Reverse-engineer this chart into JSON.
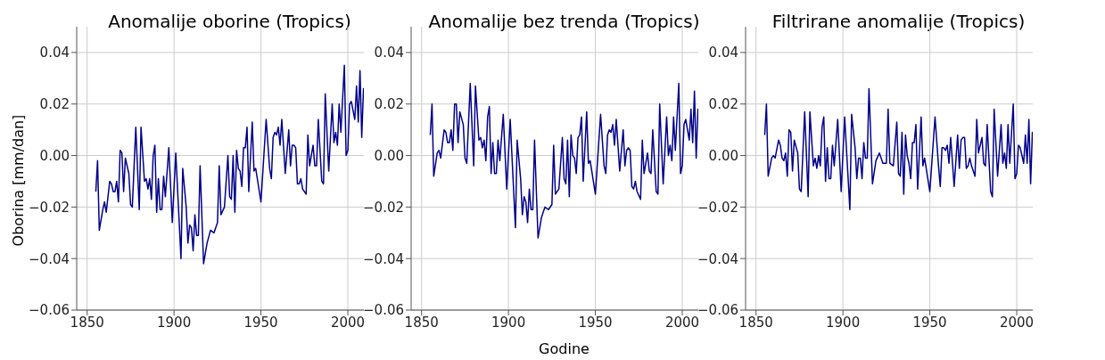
{
  "chart_data": [
    {
      "type": "line",
      "title": "Anomalije oborine (Tropics)",
      "ylabel": "Oborina [mm/dan]",
      "xlim": [
        1844,
        2020
      ],
      "xticks": [
        1850,
        1900,
        1950,
        2000
      ],
      "ylim": [
        -0.06,
        0.05
      ],
      "yticks": [
        {
          "value": -0.06,
          "label": "−0.06"
        },
        {
          "value": -0.04,
          "label": "−0.04"
        },
        {
          "value": -0.02,
          "label": "−0.02"
        },
        {
          "value": 0,
          "label": "0.00"
        },
        {
          "value": 0.02,
          "label": "0.02"
        },
        {
          "value": 0.04,
          "label": "0.04"
        }
      ],
      "grid": true,
      "line_style": "solid",
      "marker": "none",
      "series": [
        {
          "color": "#00008b",
          "x": [
            1855,
            1856,
            1857,
            1859,
            1860,
            1861,
            1863,
            1864,
            1865,
            1866,
            1867,
            1868,
            1869,
            1870,
            1871,
            1872,
            1874,
            1875,
            1876,
            1878,
            1880,
            1881,
            1883,
            1884,
            1885,
            1886,
            1887,
            1888,
            1889,
            1890,
            1891,
            1892,
            1893,
            1894,
            1895,
            1897,
            1899,
            1901,
            1904,
            1905,
            1907,
            1908,
            1909,
            1910,
            1911,
            1912,
            1913,
            1914,
            1915,
            1917,
            1919,
            1921,
            1923,
            1925,
            1926,
            1927,
            1929,
            1931,
            1932,
            1933,
            1934,
            1935,
            1936,
            1937,
            1938,
            1939,
            1940,
            1941,
            1942,
            1943,
            1945,
            1946,
            1947,
            1950,
            1953,
            1955,
            1956,
            1957,
            1958,
            1959,
            1960,
            1961,
            1962,
            1964,
            1966,
            1967,
            1968,
            1969,
            1970,
            1971,
            1972,
            1973,
            1974,
            1976,
            1977,
            1978,
            1980,
            1981,
            1982,
            1983,
            1985,
            1986,
            1987,
            1989,
            1991,
            1992,
            1993,
            1994,
            1995,
            1996,
            1998,
            1999,
            2000,
            2001,
            2002,
            2004,
            2005,
            2006,
            2007,
            2008,
            2009,
            2010
          ],
          "values": [
            -0.014,
            -0.002,
            -0.029,
            -0.021,
            -0.018,
            -0.022,
            -0.01,
            -0.011,
            -0.014,
            -0.014,
            -0.01,
            -0.018,
            0.002,
            0.001,
            -0.014,
            -0.001,
            -0.007,
            -0.019,
            -0.02,
            0.011,
            -0.021,
            0.011,
            -0.01,
            -0.009,
            -0.013,
            -0.009,
            -0.017,
            0.0,
            0.004,
            -0.022,
            -0.009,
            -0.021,
            -0.021,
            -0.008,
            -0.016,
            0.003,
            -0.026,
            0.001,
            -0.04,
            -0.005,
            -0.02,
            -0.034,
            -0.027,
            -0.028,
            -0.037,
            -0.023,
            -0.031,
            -0.031,
            -0.004,
            -0.042,
            -0.034,
            -0.029,
            -0.03,
            -0.026,
            -0.004,
            -0.023,
            -0.02,
            0.0,
            -0.016,
            -0.017,
            0.0,
            -0.022,
            0.002,
            -0.005,
            -0.006,
            -0.012,
            0.003,
            0.003,
            0.011,
            -0.014,
            0.013,
            -0.006,
            -0.005,
            -0.018,
            0.014,
            -0.005,
            -0.009,
            0.007,
            0.009,
            0.008,
            0.011,
            0.004,
            0.014,
            -0.007,
            0.01,
            -0.004,
            0.004,
            0.004,
            0.003,
            -0.011,
            -0.011,
            -0.009,
            -0.013,
            -0.015,
            0.008,
            -0.004,
            0.004,
            -0.004,
            -0.004,
            0.014,
            -0.01,
            -0.011,
            0.024,
            -0.006,
            0.02,
            0.005,
            0.009,
            0.004,
            0.02,
            0.009,
            0.035,
            0.0,
            0.002,
            0.02,
            0.021,
            0.014,
            0.027,
            0.013,
            0.033,
            0.007,
            0.026,
            0.026
          ]
        }
      ]
    },
    {
      "type": "line",
      "title": "Anomalije bez trenda (Tropics)",
      "xlabel": "Godine",
      "xlim": [
        1844,
        2020
      ],
      "xticks": [
        1850,
        1900,
        1950,
        2000
      ],
      "ylim": [
        -0.06,
        0.05
      ],
      "yticks": [
        {
          "value": -0.06,
          "label": "−0.06"
        },
        {
          "value": -0.04,
          "label": "−0.04"
        },
        {
          "value": -0.02,
          "label": "−0.02"
        },
        {
          "value": 0,
          "label": "0.00"
        },
        {
          "value": 0.02,
          "label": "0.02"
        },
        {
          "value": 0.04,
          "label": "0.04"
        }
      ],
      "grid": true,
      "line_style": "solid",
      "marker": "none",
      "series": [
        {
          "color": "#00008b",
          "x": [
            1855,
            1856,
            1857,
            1859,
            1860,
            1861,
            1863,
            1864,
            1865,
            1866,
            1867,
            1868,
            1869,
            1870,
            1871,
            1872,
            1874,
            1875,
            1876,
            1878,
            1880,
            1881,
            1883,
            1884,
            1885,
            1886,
            1887,
            1888,
            1889,
            1890,
            1891,
            1892,
            1893,
            1894,
            1895,
            1897,
            1899,
            1901,
            1904,
            1905,
            1907,
            1908,
            1909,
            1910,
            1911,
            1912,
            1913,
            1914,
            1915,
            1917,
            1919,
            1921,
            1923,
            1925,
            1926,
            1927,
            1929,
            1931,
            1932,
            1933,
            1934,
            1935,
            1936,
            1937,
            1938,
            1939,
            1940,
            1941,
            1942,
            1943,
            1945,
            1946,
            1947,
            1950,
            1953,
            1955,
            1956,
            1957,
            1958,
            1959,
            1960,
            1961,
            1962,
            1964,
            1966,
            1967,
            1968,
            1969,
            1970,
            1971,
            1972,
            1973,
            1974,
            1976,
            1977,
            1978,
            1980,
            1981,
            1982,
            1983,
            1985,
            1986,
            1987,
            1989,
            1991,
            1992,
            1993,
            1994,
            1995,
            1996,
            1998,
            1999,
            2000,
            2001,
            2002,
            2004,
            2005,
            2006,
            2007,
            2008,
            2009,
            2010
          ],
          "values": [
            0.008,
            0.02,
            -0.008,
            0.001,
            0.002,
            -0.001,
            0.01,
            0.009,
            0.005,
            0.005,
            0.01,
            0.002,
            0.02,
            0.02,
            0.005,
            0.017,
            0.012,
            -0.001,
            -0.003,
            0.028,
            -0.004,
            0.027,
            0.006,
            0.007,
            0.003,
            0.006,
            -0.002,
            0.015,
            0.019,
            -0.007,
            0.005,
            -0.007,
            -0.007,
            0.006,
            -0.002,
            0.016,
            -0.013,
            0.014,
            -0.028,
            0.006,
            -0.009,
            -0.023,
            -0.016,
            -0.018,
            -0.026,
            -0.013,
            -0.021,
            -0.021,
            0.006,
            -0.032,
            -0.024,
            -0.02,
            -0.021,
            -0.019,
            0.004,
            -0.015,
            -0.013,
            0.007,
            -0.009,
            -0.011,
            0.006,
            -0.016,
            0.008,
            0.0,
            -0.001,
            -0.007,
            0.007,
            0.008,
            0.015,
            -0.01,
            0.017,
            -0.003,
            -0.002,
            -0.015,
            0.016,
            -0.004,
            -0.007,
            0.008,
            0.01,
            0.009,
            0.012,
            0.004,
            0.014,
            -0.006,
            0.01,
            -0.004,
            0.002,
            0.003,
            0.002,
            -0.012,
            -0.013,
            -0.01,
            -0.014,
            -0.017,
            0.006,
            -0.007,
            0.001,
            -0.006,
            -0.007,
            0.01,
            -0.014,
            -0.015,
            0.02,
            -0.011,
            0.015,
            0.0,
            0.004,
            -0.002,
            0.015,
            0.002,
            0.028,
            -0.007,
            -0.004,
            0.012,
            0.014,
            0.006,
            0.018,
            0.005,
            0.025,
            -0.001,
            0.018,
            0.017
          ]
        }
      ]
    },
    {
      "type": "line",
      "title": "Filtrirane anomalije (Tropics)",
      "xlim": [
        1844,
        2020
      ],
      "xticks": [
        1850,
        1900,
        1950,
        2000
      ],
      "ylim": [
        -0.06,
        0.05
      ],
      "yticks": [
        {
          "value": -0.06,
          "label": "−0.06"
        },
        {
          "value": -0.04,
          "label": "−0.04"
        },
        {
          "value": -0.02,
          "label": "−0.02"
        },
        {
          "value": 0,
          "label": "0.00"
        },
        {
          "value": 0.02,
          "label": "0.02"
        },
        {
          "value": 0.04,
          "label": "0.04"
        }
      ],
      "grid": true,
      "line_style": "solid",
      "marker": "none",
      "series": [
        {
          "color": "#00008b",
          "x": [
            1855,
            1856,
            1857,
            1859,
            1860,
            1861,
            1863,
            1864,
            1865,
            1866,
            1867,
            1868,
            1869,
            1870,
            1871,
            1872,
            1874,
            1875,
            1876,
            1878,
            1880,
            1881,
            1883,
            1884,
            1885,
            1886,
            1887,
            1888,
            1889,
            1890,
            1891,
            1892,
            1893,
            1894,
            1895,
            1897,
            1899,
            1901,
            1904,
            1905,
            1907,
            1908,
            1909,
            1910,
            1911,
            1912,
            1913,
            1914,
            1915,
            1917,
            1919,
            1921,
            1923,
            1925,
            1926,
            1927,
            1929,
            1931,
            1932,
            1933,
            1934,
            1935,
            1936,
            1937,
            1938,
            1939,
            1940,
            1941,
            1942,
            1943,
            1945,
            1946,
            1947,
            1950,
            1953,
            1955,
            1956,
            1957,
            1958,
            1959,
            1960,
            1961,
            1962,
            1964,
            1966,
            1967,
            1968,
            1969,
            1970,
            1971,
            1972,
            1973,
            1974,
            1976,
            1977,
            1978,
            1980,
            1981,
            1982,
            1983,
            1985,
            1986,
            1987,
            1989,
            1991,
            1992,
            1993,
            1994,
            1995,
            1996,
            1998,
            1999,
            2000,
            2001,
            2002,
            2004,
            2005,
            2006,
            2007,
            2008,
            2009,
            2010
          ],
          "values": [
            0.008,
            0.02,
            -0.008,
            -0.001,
            0.0,
            -0.001,
            0.006,
            0.004,
            -0.001,
            -0.002,
            0.001,
            -0.008,
            0.01,
            0.009,
            -0.006,
            0.006,
            0.001,
            -0.013,
            -0.014,
            0.017,
            -0.016,
            0.017,
            -0.004,
            -0.001,
            -0.005,
            0.0,
            -0.004,
            0.011,
            0.015,
            -0.01,
            0.003,
            -0.009,
            -0.009,
            0.004,
            -0.004,
            0.014,
            -0.014,
            0.015,
            -0.021,
            0.016,
            0.003,
            -0.009,
            -0.001,
            -0.001,
            -0.009,
            0.005,
            -0.001,
            -0.001,
            0.026,
            -0.011,
            -0.002,
            0.001,
            -0.003,
            -0.003,
            0.018,
            -0.003,
            -0.004,
            0.013,
            -0.007,
            -0.008,
            0.009,
            -0.015,
            0.008,
            0.0,
            -0.003,
            -0.009,
            0.005,
            0.005,
            0.012,
            -0.013,
            0.015,
            -0.004,
            -0.001,
            -0.014,
            0.015,
            -0.004,
            -0.012,
            0.003,
            0.003,
            0.002,
            0.004,
            -0.003,
            0.007,
            -0.012,
            0.008,
            -0.005,
            0.006,
            0.007,
            0.007,
            -0.005,
            -0.004,
            -0.001,
            -0.004,
            -0.008,
            0.014,
            0.001,
            0.007,
            -0.003,
            -0.004,
            0.012,
            -0.014,
            -0.016,
            0.018,
            -0.008,
            0.012,
            -0.003,
            0.001,
            -0.005,
            0.012,
            -0.003,
            0.02,
            -0.009,
            -0.007,
            0.004,
            0.003,
            -0.003,
            0.008,
            -0.003,
            0.014,
            -0.011,
            0.009,
            0.009
          ]
        }
      ]
    }
  ]
}
